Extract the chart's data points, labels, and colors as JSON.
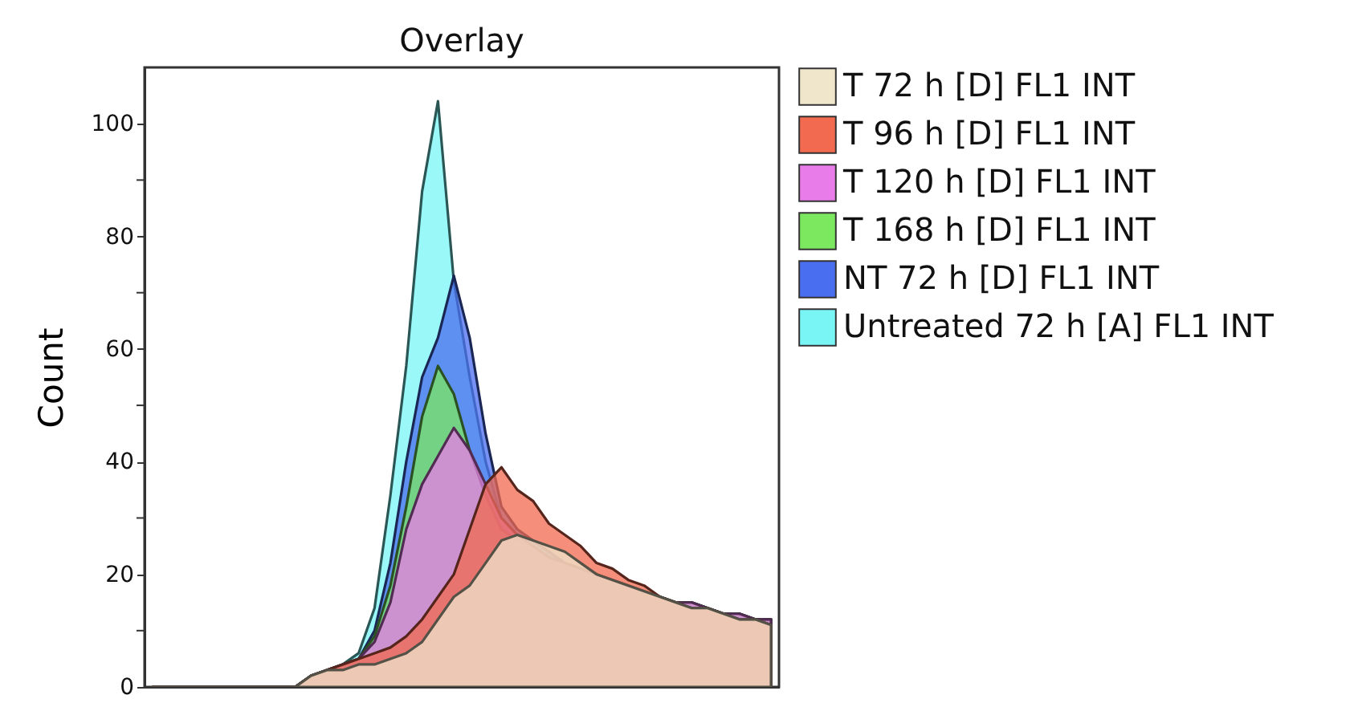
{
  "chart_data": {
    "type": "area",
    "title": "Overlay",
    "ylabel": "Count",
    "categories": [
      null,
      null,
      null,
      null,
      null,
      null,
      null,
      null,
      null,
      null,
      null,
      null,
      null,
      null,
      null,
      null,
      null,
      null,
      null,
      null,
      null,
      null,
      null,
      null,
      null,
      null,
      null,
      null,
      null,
      null,
      null,
      null,
      null,
      null,
      null,
      null,
      null,
      null,
      null,
      null
    ],
    "series": [
      {
        "name": "T 72 h [D] FL1 INT",
        "color": "#efe6cc",
        "values": [
          0,
          0,
          0,
          0,
          0,
          0,
          0,
          0,
          0,
          0,
          2,
          3,
          3,
          4,
          4,
          5,
          6,
          8,
          12,
          16,
          18,
          22,
          26,
          27,
          26,
          25,
          24,
          22,
          20,
          19,
          18,
          17,
          16,
          15,
          14,
          14,
          13,
          12,
          12,
          11
        ]
      },
      {
        "name": "T 96 h [D] FL1 INT",
        "color": "#f26a50",
        "values": [
          0,
          0,
          0,
          0,
          0,
          0,
          0,
          0,
          0,
          0,
          2,
          3,
          4,
          5,
          6,
          7,
          9,
          12,
          16,
          20,
          28,
          36,
          39,
          35,
          33,
          29,
          27,
          25,
          22,
          21,
          19,
          18,
          16,
          15,
          14,
          14,
          13,
          12,
          12,
          11
        ]
      },
      {
        "name": "T 120 h [D] FL1 INT",
        "color": "#e87ce8",
        "values": [
          0,
          0,
          0,
          0,
          0,
          0,
          0,
          0,
          0,
          0,
          2,
          3,
          4,
          5,
          8,
          15,
          28,
          36,
          41,
          46,
          42,
          36,
          30,
          27,
          25,
          23,
          22,
          21,
          20,
          19,
          18,
          17,
          16,
          15,
          15,
          14,
          13,
          13,
          12,
          12
        ]
      },
      {
        "name": "T 168 h [D] FL1 INT",
        "color": "#7ce860",
        "values": [
          0,
          0,
          0,
          0,
          0,
          0,
          0,
          0,
          0,
          0,
          2,
          3,
          4,
          5,
          9,
          18,
          32,
          48,
          57,
          52,
          42,
          34,
          28,
          26,
          25,
          23,
          22,
          21,
          20,
          19,
          18,
          17,
          16,
          15,
          15,
          14,
          13,
          13,
          12,
          12
        ]
      },
      {
        "name": "NT 72 h [D] FL1 INT",
        "color": "#4a6ef0",
        "values": [
          0,
          0,
          0,
          0,
          0,
          0,
          0,
          0,
          0,
          0,
          2,
          3,
          4,
          5,
          10,
          22,
          40,
          55,
          62,
          73,
          62,
          45,
          32,
          28,
          26,
          24,
          22,
          21,
          20,
          19,
          18,
          17,
          16,
          15,
          15,
          14,
          13,
          13,
          12,
          12
        ]
      },
      {
        "name": "Untreated 72 h [A] FL1 INT",
        "color": "#7af5f5",
        "values": [
          0,
          0,
          0,
          0,
          0,
          0,
          0,
          0,
          0,
          0,
          2,
          3,
          4,
          6,
          14,
          34,
          57,
          88,
          104,
          72,
          55,
          40,
          30,
          27,
          26,
          24,
          22,
          21,
          20,
          19,
          18,
          17,
          16,
          15,
          15,
          14,
          13,
          13,
          12,
          12
        ]
      }
    ],
    "ylim": [
      0,
      110
    ],
    "yticks": [
      0,
      {
        "value": 10,
        "label": null
      },
      20,
      {
        "value": 30,
        "label": null
      },
      40,
      {
        "value": 50,
        "label": null
      },
      60,
      {
        "value": 70,
        "label": null
      },
      80,
      {
        "value": 90,
        "label": null
      },
      100
    ],
    "tick_labels": "y",
    "legend": "top right",
    "grid": false
  }
}
